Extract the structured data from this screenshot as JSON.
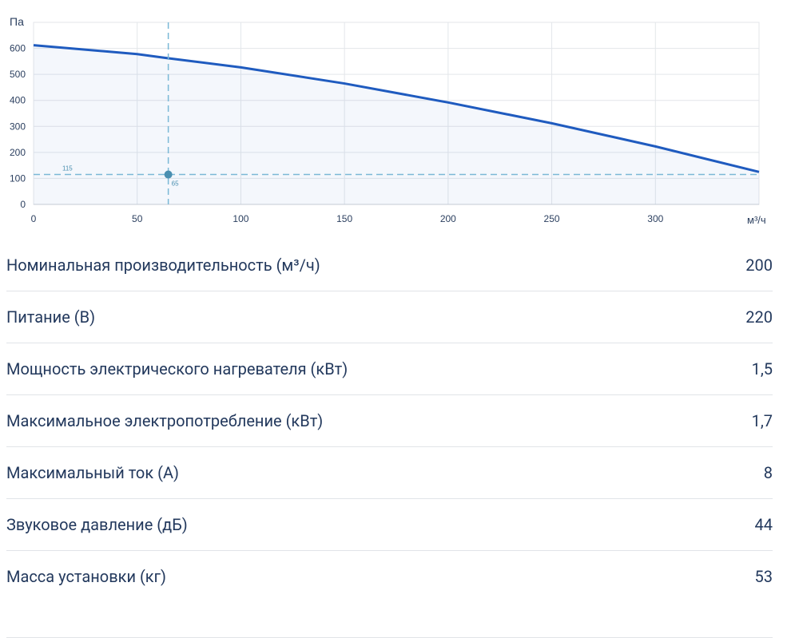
{
  "chart_data": {
    "type": "line",
    "y_label": "Па",
    "x_label": "м³/ч",
    "x": [
      0,
      50,
      64,
      100,
      150,
      200,
      250,
      300,
      350
    ],
    "series": [
      {
        "name": null,
        "color": "#1f5bbf",
        "values": [
          612,
          578,
          563,
          527,
          465,
          392,
          312,
          223,
          125
        ]
      }
    ],
    "xlim": [
      0,
      350
    ],
    "ylim": [
      0,
      700
    ],
    "xticks": [
      0,
      50,
      100,
      150,
      200,
      250,
      300
    ],
    "yticks": [
      0,
      100,
      200,
      300,
      400,
      500,
      600
    ],
    "grid": true,
    "operating_point": {
      "x": 65,
      "y": 115,
      "color": "#4a8fb0"
    }
  },
  "specs": {
    "rows": [
      [
        "Номинальная производительность (м³/ч)",
        "200"
      ],
      [
        "Питание (В)",
        "220"
      ],
      [
        "Мощность электрического нагревателя (кВт)",
        "1,5"
      ],
      [
        "Максимальное электропотребление (кВт)",
        "1,7"
      ],
      [
        "Максимальный ток (А)",
        "8"
      ],
      [
        "Звуковое давление (дБ)",
        "44"
      ],
      [
        "Масса установки (кг)",
        "53"
      ]
    ]
  }
}
